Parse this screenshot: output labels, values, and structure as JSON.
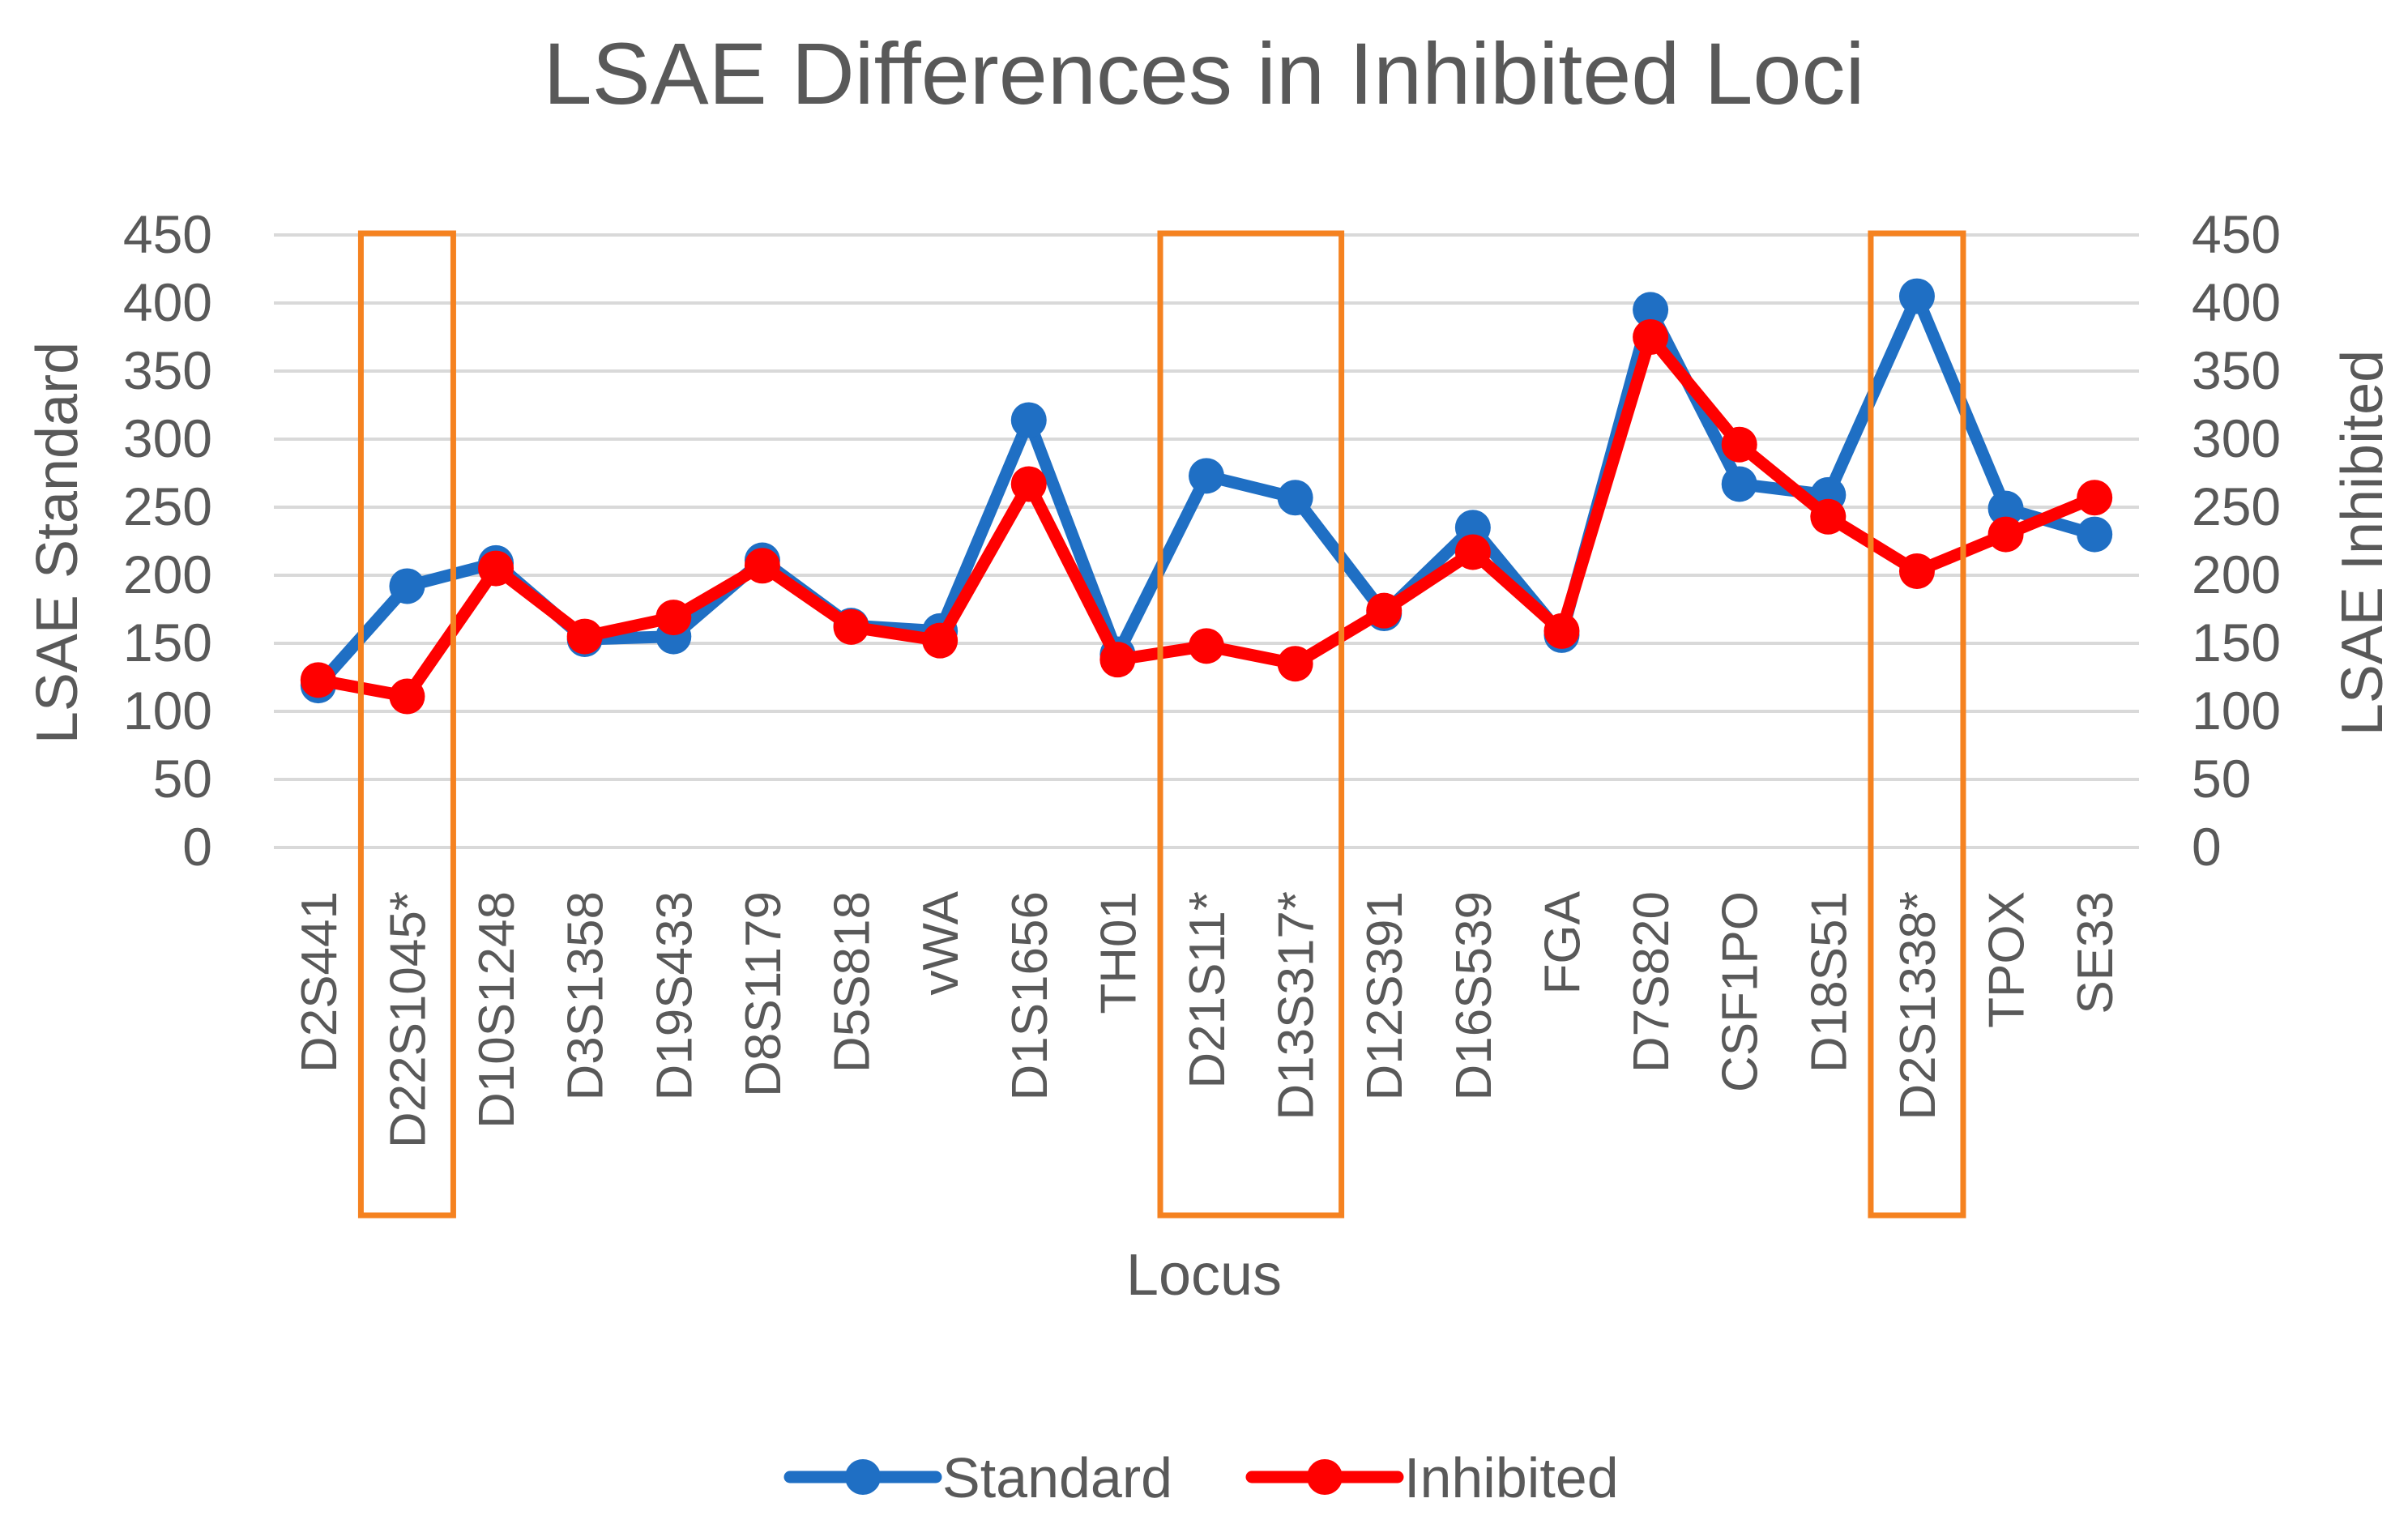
{
  "chart_data": {
    "type": "line",
    "title": "LSAE Differences in Inhibited Loci",
    "xlabel": "Locus",
    "ylabel": "LSAE Standard",
    "y2label": "LSAE Inhibited",
    "ylim": [
      0,
      450
    ],
    "y2lim": [
      0,
      450
    ],
    "yticks": [
      "0",
      "50",
      "100",
      "150",
      "200",
      "250",
      "300",
      "350",
      "400",
      "450"
    ],
    "y2ticks": [
      "0",
      "50",
      "100",
      "150",
      "200",
      "250",
      "300",
      "350",
      "400",
      "450"
    ],
    "grid": true,
    "legend_position": "bottom",
    "categories": [
      "D2S441",
      "D22S1045*",
      "D10S1248",
      "D3S1358",
      "D19S433",
      "D8S1179",
      "D5S818",
      "vWA",
      "D1S1656",
      "TH01",
      "D21S11*",
      "D13S317*",
      "D12S391",
      "D16S539",
      "FGA",
      "D7S820",
      "CSF1PO",
      "D18S51",
      "D2S1338*",
      "TPOX",
      "SE33"
    ],
    "series": [
      {
        "name": "Standard",
        "color": "#1f6fc4",
        "values": [
          119,
          192,
          209,
          153,
          155,
          211,
          163,
          159,
          314,
          142,
          273,
          257,
          172,
          235,
          156,
          395,
          267,
          259,
          405,
          249,
          230
        ]
      },
      {
        "name": "Inhibited",
        "color": "#ff0000",
        "values": [
          123,
          111,
          205,
          155,
          169,
          207,
          162,
          152,
          267,
          138,
          148,
          135,
          174,
          217,
          159,
          375,
          296,
          243,
          203,
          230,
          257
        ]
      }
    ],
    "highlight_boxes": [
      {
        "categories": [
          "D22S1045*"
        ],
        "color": "#f58220"
      },
      {
        "categories": [
          "D21S11*",
          "D13S317*"
        ],
        "color": "#f58220"
      },
      {
        "categories": [
          "D2S1338*"
        ],
        "color": "#f58220"
      }
    ]
  }
}
